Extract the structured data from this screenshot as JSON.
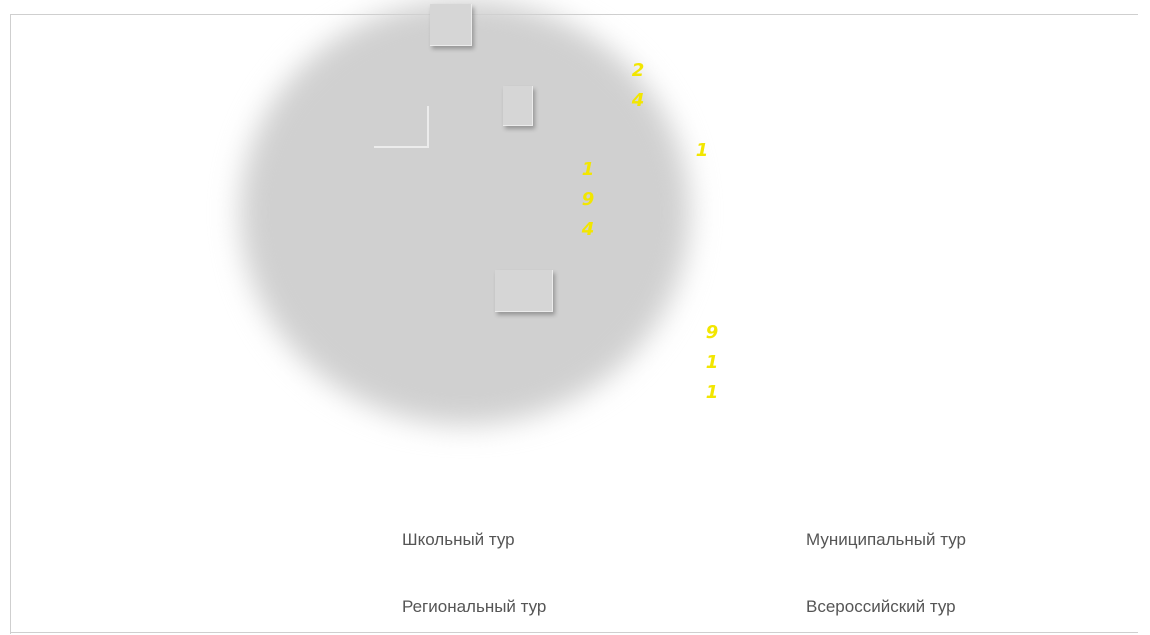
{
  "chart_data": {
    "type": "other",
    "levels": [
      "Школьный тур",
      "Муниципальный тур",
      "Региональный тур",
      "Всероссийский тур"
    ],
    "value_labels": [
      {
        "digits": [
          "2",
          "4"
        ]
      },
      {
        "digits": [
          "1"
        ]
      },
      {
        "digits": [
          "1",
          "9",
          "4"
        ]
      },
      {
        "digits": [
          "9",
          "1",
          "1"
        ]
      }
    ]
  },
  "legend": {
    "school": "Школьный тур",
    "municipal": "Муниципальный тур",
    "regional": "Региональный тур",
    "national": "Всероссийский тур"
  },
  "colors": {
    "value_label": "#f2e600",
    "blob": "#d0d0d0",
    "legend_text": "#555555"
  }
}
